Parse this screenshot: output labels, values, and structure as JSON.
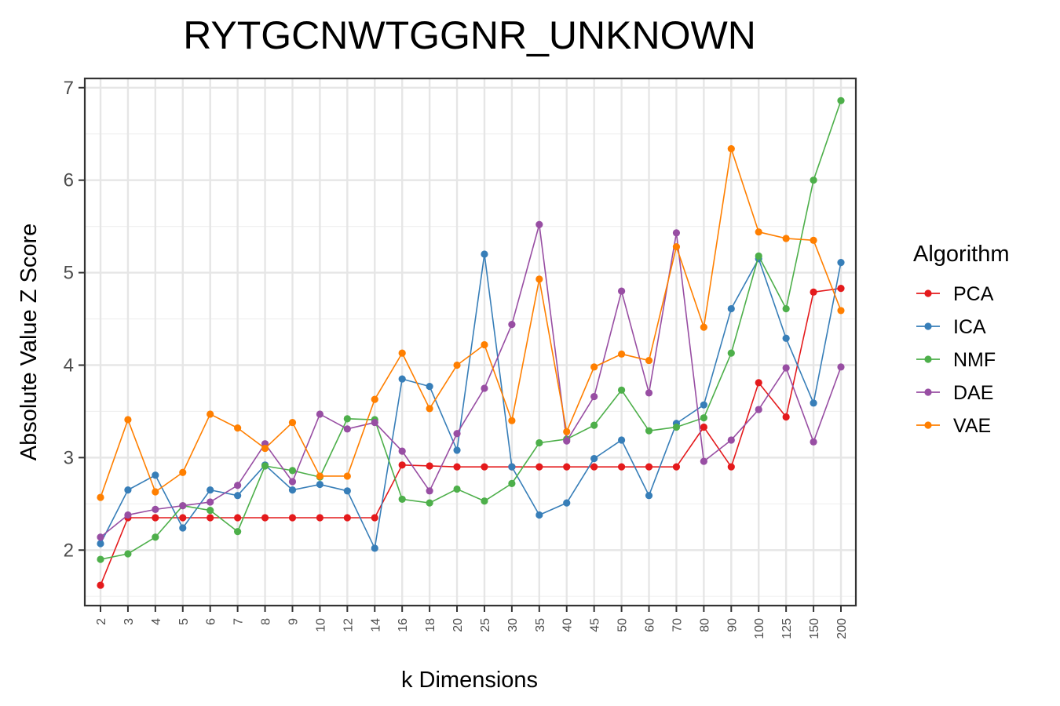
{
  "chart_data": {
    "type": "line",
    "title": "RYTGCNWTGGNR_UNKNOWN",
    "xlabel": "k Dimensions",
    "ylabel": "Absolute Value Z Score",
    "legend_title": "Algorithm",
    "legend_position": "right",
    "grid": true,
    "ylim": [
      1.4,
      7.1
    ],
    "yticks": [
      2,
      3,
      4,
      5,
      6,
      7
    ],
    "categories": [
      "2",
      "3",
      "4",
      "5",
      "6",
      "7",
      "8",
      "9",
      "10",
      "12",
      "14",
      "16",
      "18",
      "20",
      "25",
      "30",
      "35",
      "40",
      "45",
      "50",
      "60",
      "70",
      "80",
      "90",
      "100",
      "125",
      "150",
      "200"
    ],
    "series": [
      {
        "name": "PCA",
        "color": "#E41A1C",
        "values": [
          1.62,
          2.35,
          2.35,
          2.35,
          2.35,
          2.35,
          2.35,
          2.35,
          2.35,
          2.35,
          2.35,
          2.92,
          2.91,
          2.9,
          2.9,
          2.9,
          2.9,
          2.9,
          2.9,
          2.9,
          2.9,
          2.9,
          3.33,
          2.9,
          3.81,
          3.44,
          4.79,
          4.83
        ]
      },
      {
        "name": "ICA",
        "color": "#377EB8",
        "values": [
          2.07,
          2.65,
          2.81,
          2.24,
          2.65,
          2.59,
          2.92,
          2.65,
          2.71,
          2.64,
          2.02,
          3.85,
          3.77,
          3.08,
          5.2,
          2.9,
          2.38,
          2.51,
          2.99,
          3.19,
          2.59,
          3.37,
          3.57,
          4.61,
          5.15,
          4.29,
          3.59,
          5.11
        ]
      },
      {
        "name": "NMF",
        "color": "#4DAF4A",
        "values": [
          1.9,
          1.96,
          2.14,
          2.48,
          2.43,
          2.2,
          2.91,
          2.86,
          2.79,
          3.42,
          3.41,
          2.55,
          2.51,
          2.66,
          2.53,
          2.72,
          3.16,
          3.2,
          3.35,
          3.73,
          3.29,
          3.33,
          3.43,
          4.13,
          5.18,
          4.61,
          6.0,
          6.86
        ]
      },
      {
        "name": "DAE",
        "color": "#984EA3",
        "values": [
          2.14,
          2.38,
          2.44,
          2.48,
          2.52,
          2.7,
          3.15,
          2.74,
          3.47,
          3.31,
          3.38,
          3.07,
          2.64,
          3.26,
          3.75,
          4.44,
          5.52,
          3.18,
          3.66,
          4.8,
          3.7,
          5.43,
          2.96,
          3.19,
          3.52,
          3.97,
          3.17,
          3.98
        ]
      },
      {
        "name": "VAE",
        "color": "#FF7F00",
        "values": [
          2.57,
          3.41,
          2.63,
          2.84,
          3.47,
          3.32,
          3.1,
          3.38,
          2.8,
          2.8,
          3.63,
          4.13,
          3.53,
          4.0,
          4.22,
          3.4,
          4.93,
          3.28,
          3.98,
          4.12,
          4.05,
          5.28,
          4.41,
          6.34,
          5.44,
          5.37,
          5.35,
          4.59
        ]
      }
    ]
  }
}
